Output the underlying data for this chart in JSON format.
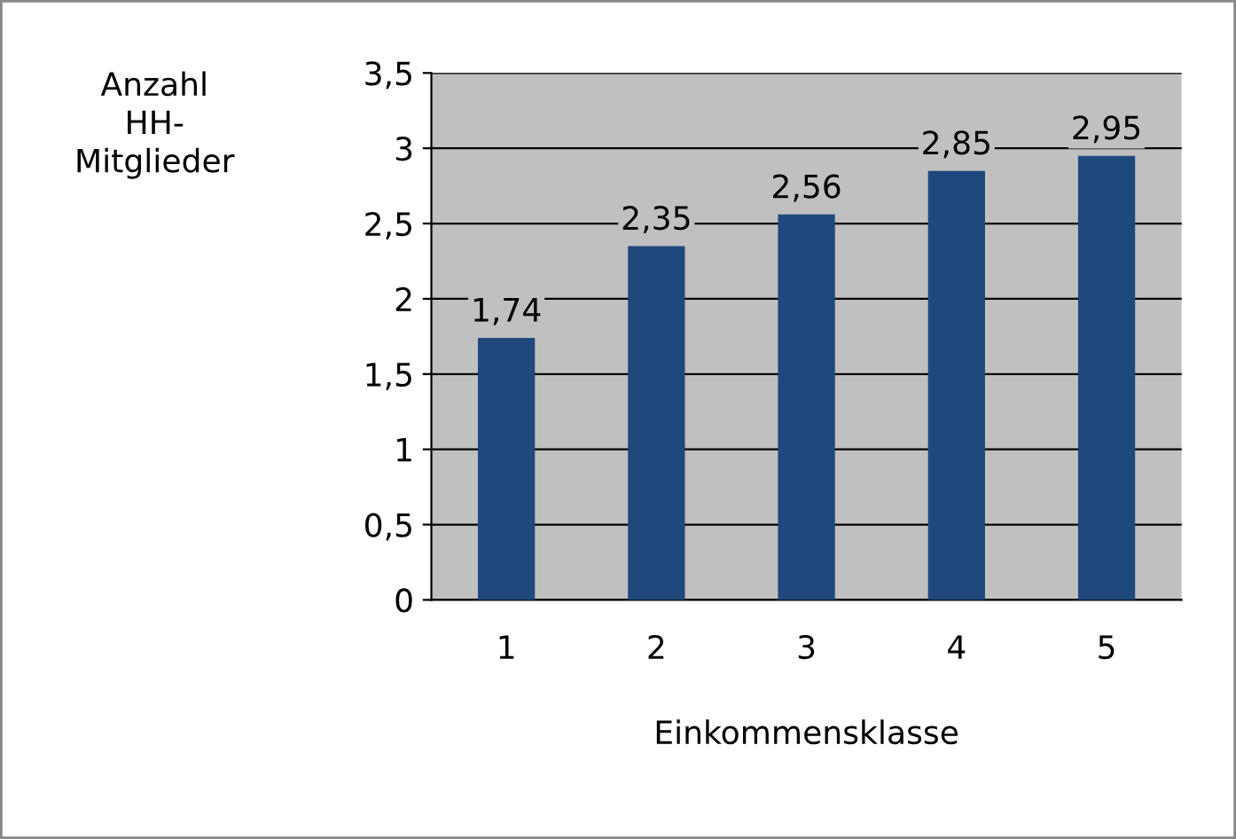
{
  "chart_data": {
    "type": "bar",
    "xlabel": "Einkommensklasse",
    "ylabel": "Anzahl HH-Mitglieder",
    "categories": [
      "1",
      "2",
      "3",
      "4",
      "5"
    ],
    "values": [
      1.74,
      2.35,
      2.56,
      2.85,
      2.95
    ],
    "value_labels": [
      "1,74",
      "2,35",
      "2,56",
      "2,85",
      "2,95"
    ],
    "color": "#1f497d",
    "ylim": [
      0,
      3.5
    ],
    "yticks": [
      0,
      {
        "value": 0.5,
        "label": "0,5"
      },
      1,
      {
        "value": 1.5,
        "label": "1,5"
      },
      2,
      {
        "value": 2.5,
        "label": "2,5"
      },
      3,
      {
        "value": 3.5,
        "label": "3,5"
      }
    ],
    "grid": "y",
    "legend": false
  }
}
